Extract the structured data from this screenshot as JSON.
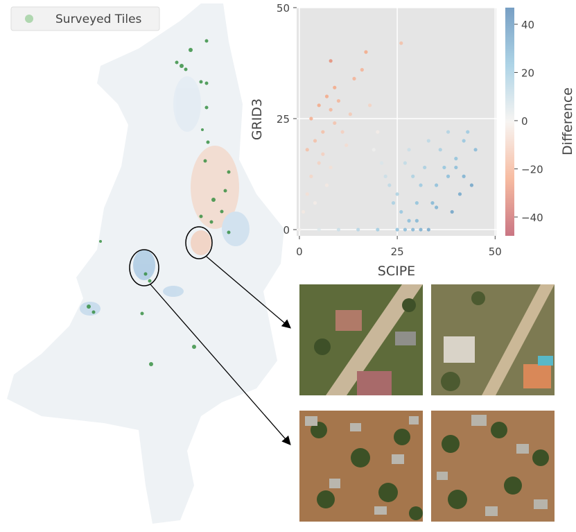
{
  "map": {
    "legend": "Surveyed Tiles"
  },
  "chart_data": {
    "type": "scatter",
    "x_label": "SCIPE",
    "y_label": "GRID3",
    "colorbar_label": "Difference",
    "xlim": [
      -0.7,
      50.3
    ],
    "ylim": [
      -1.4,
      50
    ],
    "xticks": [
      0,
      25,
      50
    ],
    "yticks": [
      0,
      25,
      50
    ],
    "grid": true,
    "clim": [
      -47.8,
      46.9
    ],
    "cticks": [
      {
        "value": 40,
        "label": "40"
      },
      {
        "value": 20,
        "label": "20"
      },
      {
        "value": 0,
        "label": "0"
      },
      {
        "value": -20,
        "label": "−20"
      },
      {
        "value": -40,
        "label": "−40"
      }
    ],
    "colorscale": [
      "#b8485a",
      "#f4a582",
      "#f4f1ee",
      "#92c5de",
      "#4a7fb0"
    ],
    "x": [
      1,
      2,
      3,
      2,
      4,
      5,
      3,
      6,
      5,
      7,
      8,
      6,
      9,
      10,
      8,
      11,
      12,
      7,
      4,
      9,
      14,
      16,
      18,
      13,
      20,
      22,
      25,
      27,
      28,
      30,
      32,
      33,
      35,
      36,
      38,
      40,
      42,
      43,
      44,
      41,
      39,
      37,
      34,
      31,
      29,
      26,
      24,
      23,
      21,
      19,
      30,
      35,
      40,
      45,
      38,
      28,
      42,
      8,
      17,
      26,
      0,
      5,
      10,
      15,
      20,
      25,
      27,
      29,
      31,
      33
    ],
    "y": [
      4,
      8,
      12,
      18,
      20,
      15,
      25,
      22,
      28,
      30,
      27,
      17,
      24,
      29,
      14,
      22,
      19,
      10,
      6,
      32,
      34,
      36,
      28,
      26,
      22,
      12,
      8,
      15,
      18,
      6,
      14,
      20,
      10,
      18,
      12,
      16,
      20,
      22,
      10,
      8,
      4,
      14,
      6,
      10,
      12,
      4,
      6,
      10,
      15,
      18,
      2,
      5,
      14,
      18,
      22,
      2,
      12,
      38,
      40,
      42,
      0,
      0,
      0,
      0,
      0,
      0,
      0,
      0,
      0,
      0
    ]
  }
}
